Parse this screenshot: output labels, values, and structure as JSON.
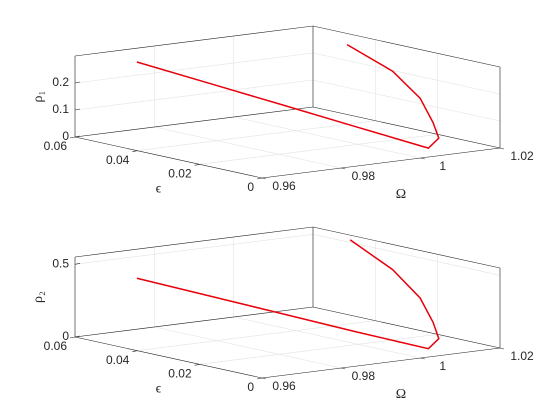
{
  "chart_data": [
    {
      "type": "line3d",
      "xlabel": "Ω",
      "ylabel": "ϵ",
      "zlabel": "ρ₁",
      "xlim": [
        0.96,
        1.02
      ],
      "ylim": [
        0,
        0.06
      ],
      "zlim": [
        0,
        0.3
      ],
      "xticks": [
        0.96,
        0.98,
        1,
        1.02
      ],
      "yticks": [
        0,
        0.02,
        0.04,
        0.06
      ],
      "zticks": [
        0,
        0.1,
        0.2
      ],
      "grid": true,
      "series": [
        {
          "color": "#e8000b",
          "x": [
            0.9756,
            0.9828,
            0.99,
            0.9971,
            1.0014,
            1.0043,
            1.0085,
            1.011,
            1.014,
            1.0165,
            1.0168
          ],
          "y": [
            0.06,
            0.0458,
            0.0315,
            0.0173,
            0.0087,
            0.003,
            0.005,
            0.01,
            0.018,
            0.03,
            0.045
          ],
          "z": [
            0.249,
            0.192,
            0.135,
            0.078,
            0.044,
            0.021,
            0.045,
            0.085,
            0.15,
            0.215,
            0.275
          ]
        }
      ]
    },
    {
      "type": "line3d",
      "xlabel": "Ω",
      "ylabel": "ϵ",
      "zlabel": "ρ₂",
      "xlim": [
        0.96,
        1.02
      ],
      "ylim": [
        0,
        0.06
      ],
      "zlim": [
        0,
        0.55
      ],
      "xticks": [
        0.96,
        0.98,
        1,
        1.02
      ],
      "yticks": [
        0,
        0.02,
        0.04,
        0.06
      ],
      "zticks": [
        0,
        0.5
      ],
      "grid": true,
      "series": [
        {
          "color": "#e8000b",
          "x": [
            0.9756,
            0.9828,
            0.99,
            0.9971,
            1.0014,
            1.0043,
            1.0085,
            1.011,
            1.014,
            1.0165,
            1.0176
          ],
          "y": [
            0.06,
            0.0458,
            0.0315,
            0.0173,
            0.0087,
            0.003,
            0.005,
            0.01,
            0.018,
            0.03,
            0.045
          ],
          "z": [
            0.35,
            0.27,
            0.19,
            0.11,
            0.065,
            0.035,
            0.08,
            0.16,
            0.28,
            0.41,
            0.54
          ]
        }
      ]
    }
  ]
}
